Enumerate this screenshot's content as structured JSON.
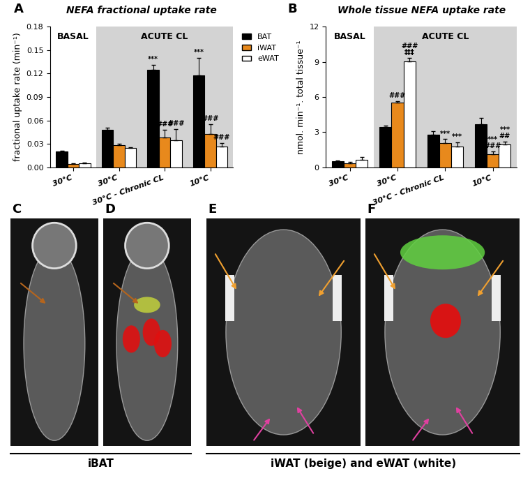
{
  "chart_data": [
    {
      "panel_label": "A",
      "type": "bar",
      "title": "NEFA fractional uptake rate",
      "y_label": "fractional uptake rate (min⁻¹)",
      "categories": [
        "30°C",
        "30°C",
        "30°C - Chronic CL",
        "10°C"
      ],
      "groups": [
        {
          "label": "BASAL",
          "categories": [
            0
          ]
        },
        {
          "label": "ACUTE CL",
          "categories": [
            1,
            2,
            3
          ]
        }
      ],
      "series": [
        {
          "name": "BAT",
          "color": "#000000",
          "values": [
            0.02,
            0.048,
            0.125,
            0.118
          ],
          "errors": [
            0.001,
            0.003,
            0.006,
            0.022
          ]
        },
        {
          "name": "iWAT",
          "color": "#e8891c",
          "values": [
            0.004,
            0.028,
            0.038,
            0.043
          ],
          "errors": [
            0.001,
            0.002,
            0.01,
            0.012
          ]
        },
        {
          "name": "eWAT",
          "color": "#ffffff",
          "values": [
            0.005,
            0.025,
            0.035,
            0.027
          ],
          "errors": [
            0.001,
            0.001,
            0.014,
            0.004
          ]
        }
      ],
      "ylim": [
        0,
        0.18
      ],
      "yticks": [
        {
          "value": 0,
          "label": "0.00"
        },
        0.03,
        0.06,
        0.09,
        0.12,
        0.15,
        0.18
      ],
      "legend": "upper left",
      "annotations": [
        {
          "category": 2,
          "series": "BAT",
          "text": [
            "***"
          ]
        },
        {
          "category": 2,
          "series": "iWAT",
          "text": [
            "###"
          ]
        },
        {
          "category": 2,
          "series": "eWAT",
          "text": [
            "###"
          ]
        },
        {
          "category": 3,
          "series": "BAT",
          "text": [
            "***"
          ]
        },
        {
          "category": 3,
          "series": "iWAT",
          "text": [
            "###"
          ]
        },
        {
          "category": 3,
          "series": "eWAT",
          "text": [
            "###"
          ]
        }
      ]
    },
    {
      "panel_label": "B",
      "type": "bar",
      "title": "Whole tissue NEFA uptake rate",
      "y_label": "nmol. min⁻¹. total tissue⁻¹",
      "categories": [
        "30°C",
        "30°C",
        "30°C - Chronic CL",
        "10°C"
      ],
      "groups": [
        {
          "label": "BASAL",
          "categories": [
            0
          ]
        },
        {
          "label": "ACUTE CL",
          "categories": [
            1,
            2,
            3
          ]
        }
      ],
      "series": [
        {
          "name": "BAT",
          "color": "#000000",
          "values": [
            0.55,
            3.45,
            2.8,
            3.65
          ],
          "errors": [
            0.05,
            0.1,
            0.3,
            0.55
          ]
        },
        {
          "name": "iWAT",
          "color": "#e8891c",
          "values": [
            0.35,
            5.55,
            2.05,
            1.1
          ],
          "errors": [
            0.1,
            0.1,
            0.35,
            0.25
          ]
        },
        {
          "name": "eWAT",
          "color": "#ffffff",
          "values": [
            0.65,
            9.05,
            1.75,
            1.95
          ],
          "errors": [
            0.25,
            0.3,
            0.4,
            0.25
          ]
        }
      ],
      "ylim": [
        0,
        12
      ],
      "yticks": [
        0,
        3,
        6,
        9,
        12
      ],
      "annotations": [
        {
          "category": 1,
          "series": "iWAT",
          "text": [
            "###"
          ]
        },
        {
          "category": 1,
          "series": "eWAT",
          "text": [
            "###",
            "‡‡‡"
          ]
        },
        {
          "category": 2,
          "series": "iWAT",
          "text": [
            "***"
          ]
        },
        {
          "category": 2,
          "series": "eWAT",
          "text": [
            "***"
          ]
        },
        {
          "category": 3,
          "series": "iWAT",
          "text": [
            "***",
            "###"
          ]
        },
        {
          "category": 3,
          "series": "eWAT",
          "text": [
            "***",
            "##"
          ]
        }
      ]
    }
  ],
  "images": {
    "panels": [
      {
        "label": "C"
      },
      {
        "label": "D"
      },
      {
        "label": "E"
      },
      {
        "label": "F"
      }
    ],
    "captions": [
      {
        "text": "iBAT",
        "panels": [
          "C",
          "D"
        ]
      },
      {
        "text": "iWAT (beige) and eWAT (white)",
        "panels": [
          "E",
          "F"
        ]
      }
    ]
  }
}
